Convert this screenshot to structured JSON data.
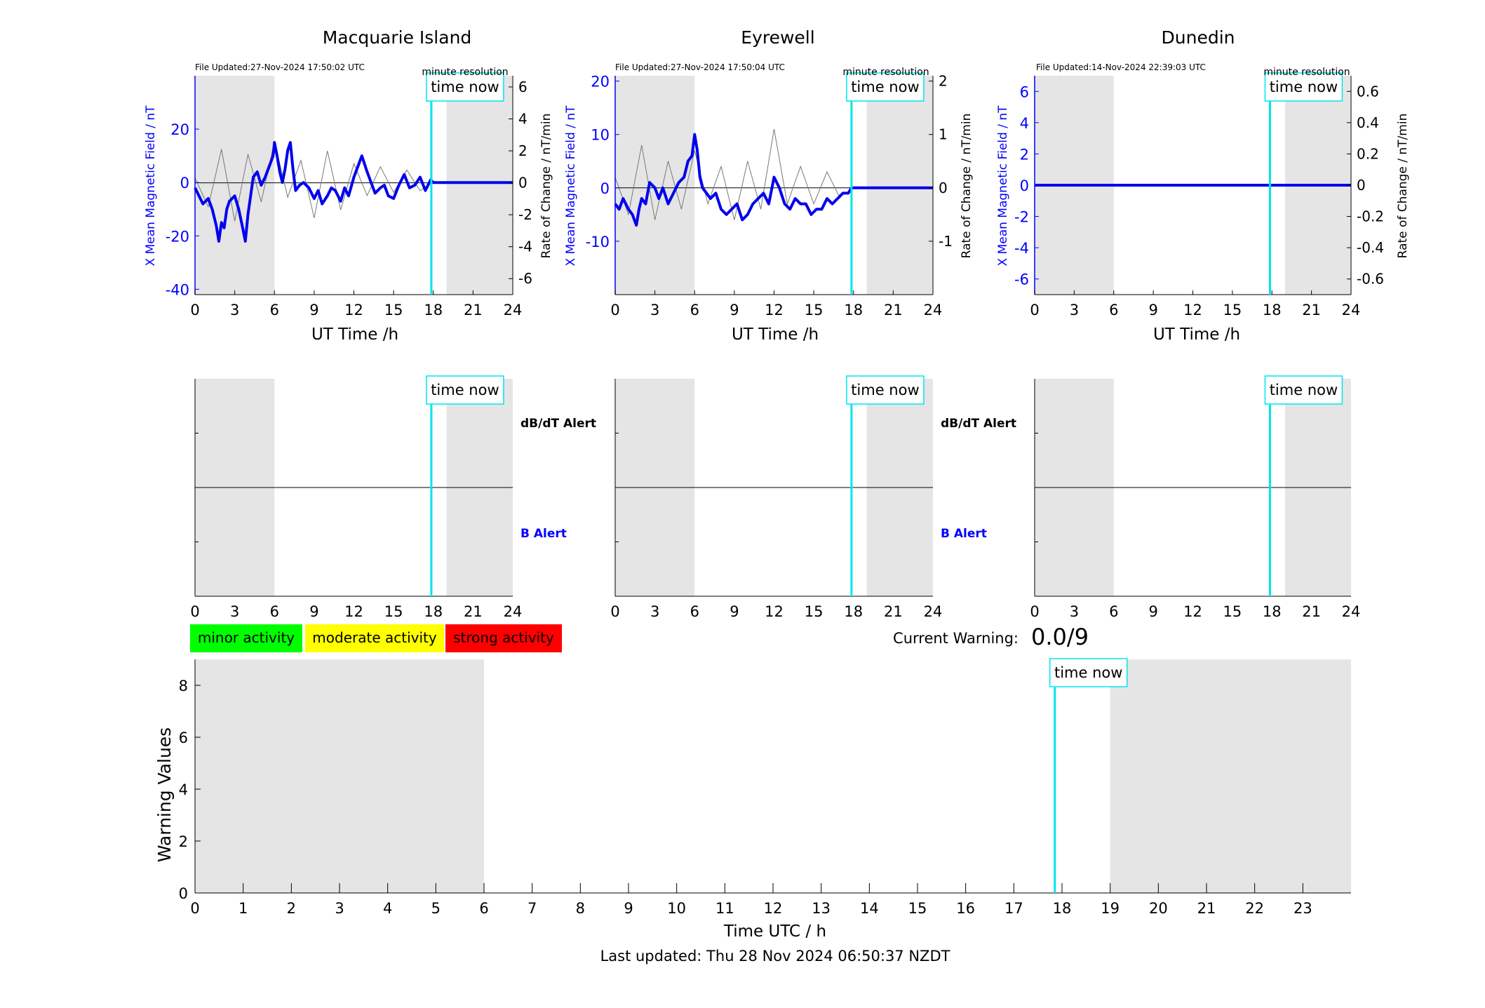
{
  "stations": [
    {
      "title": "Macquarie Island",
      "file_updated": "File Updated:27-Nov-2024 17:50:02 UTC",
      "resolution_label": "minute resolution",
      "left_ylabel": "X Mean Magnetic Field / nT",
      "right_ylabel": "Rate of Change / nT/min",
      "xlabel": "UT Time /h",
      "ylim_left": [
        -42,
        40
      ],
      "yticks_left": [
        -40,
        -20,
        0,
        20
      ],
      "ylim_right": [
        -7,
        6.7
      ],
      "yticks_right": [
        -6,
        -4,
        -2,
        0,
        2,
        4,
        6
      ]
    },
    {
      "title": "Eyrewell",
      "file_updated": "File Updated:27-Nov-2024 17:50:04 UTC",
      "resolution_label": "minute resolution",
      "left_ylabel": "X Mean Magnetic Field / nT",
      "right_ylabel": "Rate of Change / nT/min",
      "xlabel": "UT Time /h",
      "ylim_left": [
        -20,
        21
      ],
      "yticks_left": [
        -10,
        0,
        10,
        20
      ],
      "ylim_right": [
        -2,
        2.1
      ],
      "yticks_right": [
        -1,
        0,
        1,
        2
      ]
    },
    {
      "title": "Dunedin",
      "file_updated": "File Updated:14-Nov-2024 22:39:03 UTC",
      "resolution_label": "minute resolution",
      "left_ylabel": "X Mean Magnetic Field / nT",
      "right_ylabel": "Rate of Change / nT/min",
      "xlabel": "UT Time /h",
      "ylim_left": [
        -7,
        7
      ],
      "yticks_left": [
        -6,
        -4,
        -2,
        0,
        2,
        4,
        6
      ],
      "ylim_right": [
        -0.7,
        0.7
      ],
      "yticks_right": [
        -0.6,
        -0.4,
        -0.2,
        0,
        0.2,
        0.4,
        0.6
      ]
    }
  ],
  "time_now_label": "time now",
  "db_dt_alert_label": "dB/dT Alert",
  "b_alert_label": "B Alert",
  "legend": [
    {
      "label": "minor activity",
      "color": "#00ff00"
    },
    {
      "label": "moderate activity",
      "color": "#ffff00"
    },
    {
      "label": "strong activity",
      "color": "#ff0000"
    }
  ],
  "current_warning_label": "Current Warning:",
  "current_warning_value": "0.0/9",
  "warning_plot": {
    "ylabel": "Warning Values",
    "xlabel": "Time UTC / h",
    "yticks": [
      0,
      2,
      4,
      6,
      8
    ],
    "ylim": [
      0,
      9
    ],
    "xlim": [
      0,
      24
    ],
    "xticks": [
      0,
      1,
      2,
      3,
      4,
      5,
      6,
      7,
      8,
      9,
      10,
      11,
      12,
      13,
      14,
      15,
      16,
      17,
      18,
      19,
      20,
      21,
      22,
      23
    ]
  },
  "last_updated": "Last updated: Thu 28 Nov 2024 06:50:37 NZDT",
  "colors": {
    "field_line": "#0000ee",
    "time_now": "#00e5ee",
    "shade": "#e5e5e5",
    "axis_blue": "#0000ff"
  },
  "chart_data": [
    {
      "type": "line",
      "name": "Macquarie Island",
      "x_range": [
        0,
        24
      ],
      "xticks": [
        0,
        3,
        6,
        9,
        12,
        15,
        18,
        21,
        24
      ],
      "shaded_hours": [
        [
          0,
          6
        ],
        [
          19,
          24
        ]
      ],
      "time_now_hour": 17.85,
      "field_x": [
        0,
        0.3,
        0.6,
        1.0,
        1.3,
        1.6,
        1.8,
        2.0,
        2.2,
        2.4,
        2.6,
        2.8,
        3.0,
        3.3,
        3.6,
        3.8,
        4.0,
        4.2,
        4.4,
        4.7,
        5.0,
        5.3,
        5.6,
        5.9,
        6.0,
        6.2,
        6.4,
        6.6,
        6.8,
        7.0,
        7.2,
        7.4,
        7.6,
        7.9,
        8.2,
        8.6,
        9.0,
        9.3,
        9.6,
        10.0,
        10.3,
        10.6,
        11.0,
        11.3,
        11.6,
        12.0,
        12.3,
        12.6,
        13.0,
        13.3,
        13.6,
        14.0,
        14.3,
        14.6,
        15.0,
        15.4,
        15.8,
        16.2,
        16.6,
        17.0,
        17.4,
        17.8,
        18.0,
        20.0,
        22.0,
        24.0
      ],
      "field_y": [
        -2,
        -5,
        -8,
        -6,
        -10,
        -16,
        -22,
        -15,
        -17,
        -10,
        -7,
        -6,
        -5,
        -10,
        -17,
        -22,
        -12,
        -5,
        2,
        4,
        -1,
        2,
        6,
        10,
        15,
        10,
        4,
        0,
        5,
        12,
        15,
        5,
        -3,
        -1,
        0,
        -2,
        -6,
        -3,
        -8,
        -5,
        -2,
        -3,
        -7,
        -2,
        -5,
        2,
        6,
        10,
        4,
        0,
        -4,
        -2,
        -1,
        -5,
        -6,
        -1,
        3,
        -2,
        -1,
        2,
        -3,
        1,
        0,
        0,
        0,
        0
      ],
      "rate_x": [
        0,
        1,
        2,
        3,
        4,
        5,
        6,
        7,
        8,
        9,
        10,
        11,
        12,
        13,
        14,
        15,
        16,
        17,
        17.85
      ],
      "rate_y": [
        0.3,
        -1.5,
        2.1,
        -2.4,
        1.8,
        -1.2,
        2.6,
        -0.9,
        1.4,
        -2.2,
        2.0,
        -1.7,
        1.2,
        -0.8,
        1.0,
        -0.6,
        0.8,
        -0.5,
        0
      ]
    },
    {
      "type": "line",
      "name": "Eyrewell",
      "x_range": [
        0,
        24
      ],
      "xticks": [
        0,
        3,
        6,
        9,
        12,
        15,
        18,
        21,
        24
      ],
      "shaded_hours": [
        [
          0,
          6
        ],
        [
          19,
          24
        ]
      ],
      "time_now_hour": 17.85,
      "field_x": [
        0,
        0.3,
        0.6,
        1.0,
        1.3,
        1.6,
        1.8,
        2.0,
        2.3,
        2.6,
        3.0,
        3.3,
        3.6,
        4.0,
        4.4,
        4.8,
        5.2,
        5.5,
        5.8,
        6.0,
        6.2,
        6.4,
        6.6,
        6.9,
        7.2,
        7.6,
        8.0,
        8.4,
        8.8,
        9.2,
        9.6,
        10.0,
        10.4,
        10.8,
        11.2,
        11.6,
        12.0,
        12.4,
        12.8,
        13.2,
        13.6,
        14.0,
        14.4,
        14.8,
        15.2,
        15.6,
        16.0,
        16.4,
        16.8,
        17.2,
        17.6,
        17.85,
        18.0,
        24.0
      ],
      "field_y": [
        -3,
        -4,
        -2,
        -4,
        -5,
        -7,
        -4,
        -2,
        -3,
        1,
        0,
        -2,
        0,
        -3,
        -1,
        1,
        2,
        5,
        6,
        10,
        7,
        2,
        0,
        -1,
        -2,
        -1,
        -4,
        -5,
        -4,
        -3,
        -6,
        -5,
        -3,
        -2,
        -1,
        -3,
        2,
        0,
        -3,
        -4,
        -2,
        -3,
        -3,
        -5,
        -4,
        -4,
        -2,
        -3,
        -2,
        -1,
        -1,
        0,
        0,
        0
      ],
      "rate_x": [
        0,
        1,
        2,
        3,
        4,
        5,
        6,
        7,
        8,
        9,
        10,
        11,
        12,
        13,
        14,
        15,
        16,
        17
      ],
      "rate_y": [
        0.2,
        -0.5,
        0.8,
        -0.6,
        0.5,
        -0.4,
        0.7,
        -0.3,
        0.4,
        -0.6,
        0.5,
        -0.4,
        1.1,
        -0.3,
        0.4,
        -0.3,
        0.3,
        -0.2
      ]
    },
    {
      "type": "line",
      "name": "Dunedin",
      "x_range": [
        0,
        24
      ],
      "xticks": [
        0,
        3,
        6,
        9,
        12,
        15,
        18,
        21,
        24
      ],
      "shaded_hours": [
        [
          0,
          6
        ],
        [
          19,
          24
        ]
      ],
      "time_now_hour": 17.85,
      "field_x": [
        0,
        24
      ],
      "field_y": [
        0,
        0
      ],
      "rate_x": [],
      "rate_y": []
    },
    {
      "type": "bar",
      "name": "Warning Values",
      "x_range": [
        0,
        24
      ],
      "shaded_hours": [
        [
          0,
          6
        ],
        [
          19,
          24
        ]
      ],
      "time_now_hour": 17.85,
      "values": []
    }
  ]
}
